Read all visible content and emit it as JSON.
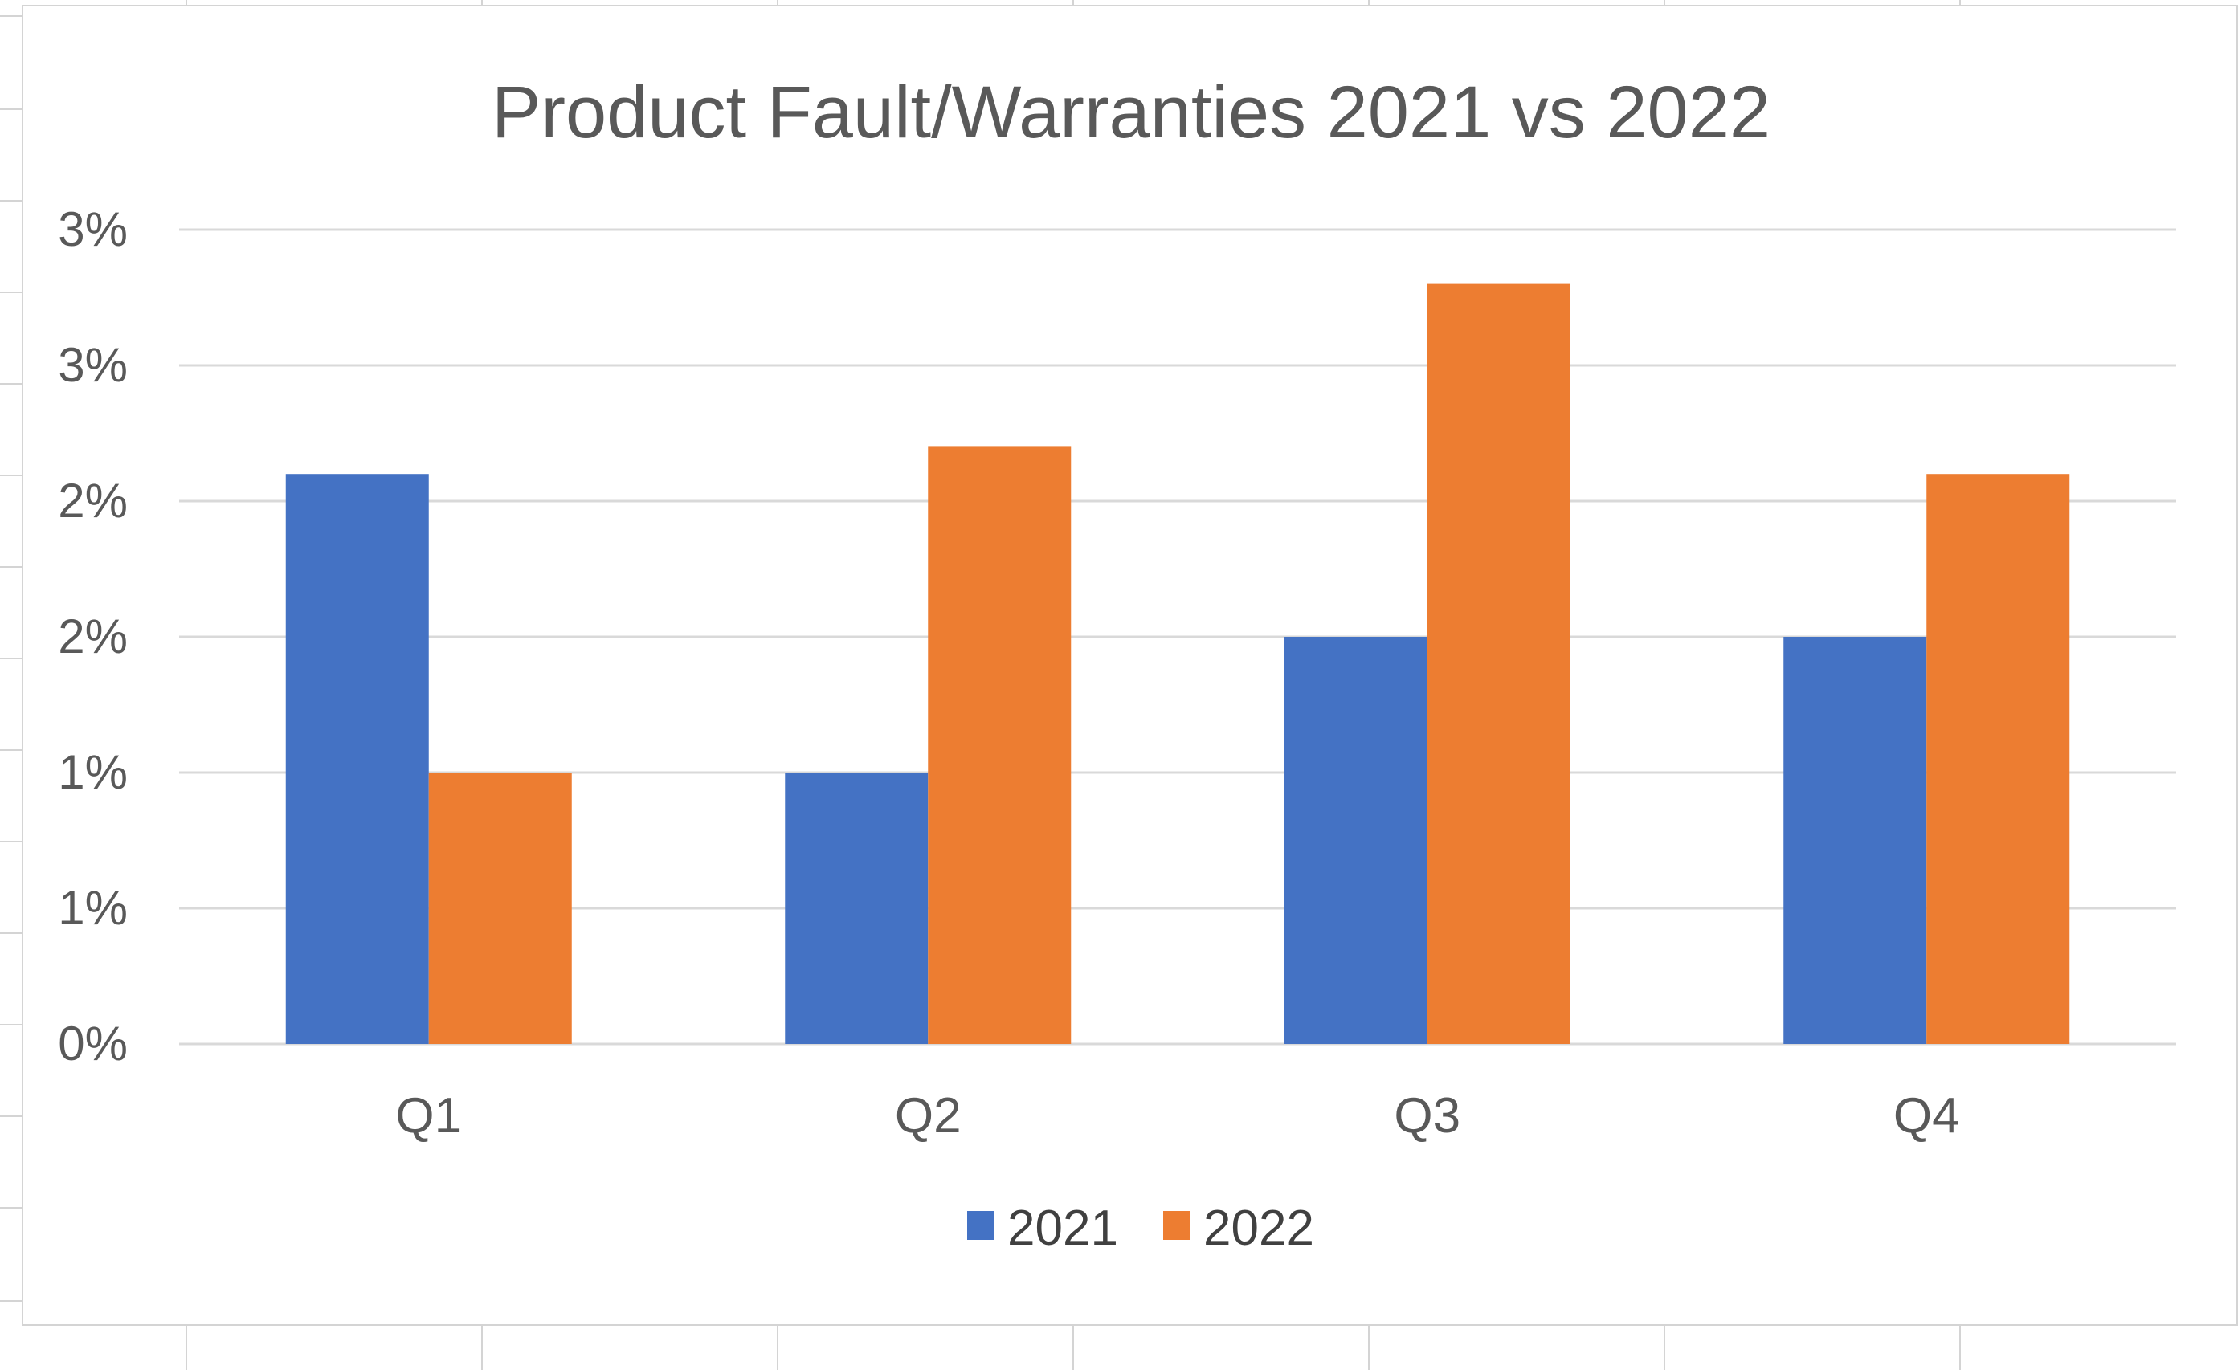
{
  "chart_data": {
    "type": "bar",
    "title": "Product Fault/Warranties 2021 vs 2022",
    "xlabel": "",
    "ylabel": "",
    "categories": [
      "Q1",
      "Q2",
      "Q3",
      "Q4"
    ],
    "series": [
      {
        "name": "2021",
        "values": [
          0.021,
          0.01,
          0.015,
          0.015
        ],
        "color": "#4472C4"
      },
      {
        "name": "2022",
        "values": [
          0.01,
          0.022,
          0.028,
          0.021
        ],
        "color": "#ED7D31"
      }
    ],
    "y_tick_values": [
      0,
      0.005,
      0.01,
      0.015,
      0.02,
      0.025,
      0.03
    ],
    "y_tick_labels": [
      "0%",
      "1%",
      "1%",
      "2%",
      "2%",
      "3%",
      "3%"
    ],
    "ylim": [
      0,
      0.03
    ],
    "grid": true,
    "legend_position": "bottom"
  },
  "colors": {
    "gridline": "#d9d9d9",
    "sheet_gridline": "#d4d4d4"
  }
}
